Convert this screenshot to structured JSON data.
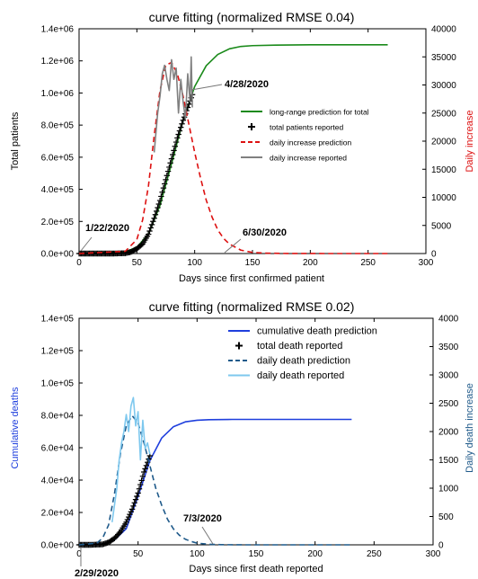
{
  "chart_data": [
    {
      "type": "line",
      "title": "curve fitting (normalized RMSE  0.04)",
      "xlabel": "Days since first confirmed patient",
      "ylabel_left": "Total patients",
      "ylabel_right": "Daily increase",
      "xlim": [
        0,
        300
      ],
      "ylim_left": [
        0,
        1400000
      ],
      "ylim_right": [
        0,
        40000
      ],
      "x_ticks": [
        "0",
        "50",
        "100",
        "150",
        "200",
        "250",
        "300"
      ],
      "y_left_ticks": [
        "0.0e+00",
        "2.0e+05",
        "4.0e+05",
        "6.0e+05",
        "8.0e+05",
        "1.0e+06",
        "1.2e+06",
        "1.4e+06"
      ],
      "y_right_ticks": [
        "0",
        "5000",
        "10000",
        "15000",
        "20000",
        "25000",
        "30000",
        "35000",
        "40000"
      ],
      "legend_position": "right",
      "colors": {
        "cumulative_prediction": "#1a8a1a",
        "cumulative_reported": "#000000",
        "daily_prediction": "#dd1111",
        "daily_reported": "#808080",
        "ylabel_right": "#dd1111",
        "ylabel_left": "#000000"
      },
      "series": [
        {
          "name": "long-range prediction for total",
          "axis": "left",
          "style": "solid",
          "x": [
            0,
            40,
            50,
            60,
            70,
            80,
            90,
            100,
            110,
            120,
            130,
            140,
            150,
            170,
            200,
            240,
            267
          ],
          "y": [
            0,
            10000,
            40000,
            120000,
            300000,
            560000,
            830000,
            1040000,
            1170000,
            1240000,
            1275000,
            1290000,
            1295000,
            1298000,
            1300000,
            1300000,
            1300000
          ]
        },
        {
          "name": "total patients reported",
          "axis": "left",
          "style": "marker",
          "x": [
            0,
            10,
            20,
            30,
            40,
            45,
            50,
            55,
            60,
            65,
            70,
            75,
            80,
            85,
            90,
            95,
            98
          ],
          "y": [
            0,
            0,
            0,
            0,
            2000,
            10000,
            30000,
            60000,
            120000,
            220000,
            330000,
            460000,
            590000,
            720000,
            830000,
            930000,
            990000
          ]
        },
        {
          "name": "daily increase prediction",
          "axis": "right",
          "style": "dashed",
          "x": [
            0,
            40,
            50,
            55,
            60,
            65,
            70,
            75,
            80,
            85,
            90,
            95,
            100,
            105,
            110,
            115,
            120,
            125,
            130,
            140,
            150,
            160,
            180,
            220,
            267
          ],
          "y": [
            0,
            400,
            2500,
            6000,
            12000,
            21000,
            29000,
            33500,
            34000,
            32000,
            28000,
            23000,
            18000,
            13500,
            9500,
            6500,
            4200,
            2700,
            1700,
            600,
            200,
            80,
            10,
            0,
            0
          ]
        },
        {
          "name": "daily increase reported",
          "axis": "right",
          "style": "solid",
          "x": [
            65,
            68,
            70,
            72,
            74,
            76,
            78,
            80,
            82,
            84,
            86,
            88,
            90,
            92,
            94,
            96,
            97,
            98
          ],
          "y": [
            18000,
            25000,
            28000,
            32000,
            33500,
            31000,
            29000,
            34500,
            31000,
            33000,
            25000,
            31000,
            27000,
            24000,
            32000,
            27000,
            35000,
            26000
          ]
        }
      ],
      "annotations": [
        {
          "text": "1/22/2020",
          "x": 0
        },
        {
          "text": "4/28/2020",
          "x": 98
        },
        {
          "text": "6/30/2020",
          "x": 160
        }
      ]
    },
    {
      "type": "line",
      "title": "curve fitting (normalized RMSE  0.02)",
      "xlabel": "Days since first death reported",
      "ylabel_left": "Cumulative deaths",
      "ylabel_right": "Daily death increase",
      "xlim": [
        0,
        300
      ],
      "ylim_left": [
        0,
        140000
      ],
      "ylim_right": [
        0,
        4000
      ],
      "x_ticks": [
        "0",
        "50",
        "100",
        "150",
        "200",
        "250",
        "300"
      ],
      "y_left_ticks": [
        "0.0e+00",
        "2.0e+04",
        "4.0e+04",
        "6.0e+04",
        "8.0e+04",
        "1.0e+05",
        "1.2e+05",
        "1.4e+05"
      ],
      "y_right_ticks": [
        "0",
        "500",
        "1000",
        "1500",
        "2000",
        "2500",
        "3000",
        "3500",
        "4000"
      ],
      "legend_position": "top-right",
      "colors": {
        "cumulative_prediction": "#1f3fdd",
        "cumulative_reported": "#000000",
        "daily_prediction": "#1f5a8a",
        "daily_reported": "#7ec8ee",
        "ylabel_right": "#1f5a8a",
        "ylabel_left": "#1f3fdd"
      },
      "series": [
        {
          "name": "cumulative death prediction",
          "axis": "left",
          "style": "solid",
          "x": [
            0,
            20,
            30,
            40,
            50,
            60,
            70,
            80,
            90,
            100,
            110,
            130,
            160,
            200,
            231
          ],
          "y": [
            0,
            500,
            3000,
            10000,
            30000,
            52000,
            66000,
            73000,
            76000,
            77000,
            77300,
            77500,
            77500,
            77500,
            77500
          ]
        },
        {
          "name": "total death reported",
          "axis": "left",
          "style": "marker",
          "x": [
            0,
            10,
            20,
            25,
            30,
            35,
            40,
            45,
            50,
            55,
            60
          ],
          "y": [
            0,
            0,
            300,
            1500,
            4000,
            8000,
            14000,
            22000,
            32000,
            45000,
            55000
          ]
        },
        {
          "name": "daily death prediction",
          "axis": "right",
          "style": "dashed",
          "x": [
            0,
            15,
            20,
            25,
            30,
            35,
            40,
            45,
            50,
            55,
            60,
            65,
            70,
            75,
            80,
            85,
            90,
            95,
            100,
            110,
            120,
            140,
            170,
            231
          ],
          "y": [
            0,
            30,
            120,
            350,
            900,
            1600,
            2100,
            2280,
            2150,
            1800,
            1400,
            1000,
            700,
            450,
            280,
            170,
            100,
            60,
            30,
            10,
            3,
            0,
            0,
            0
          ]
        },
        {
          "name": "daily death reported",
          "axis": "right",
          "style": "solid",
          "x": [
            28,
            30,
            32,
            34,
            36,
            38,
            40,
            42,
            44,
            46,
            48,
            50,
            52,
            54,
            56,
            58,
            60
          ],
          "y": [
            400,
            700,
            1000,
            1500,
            1800,
            2000,
            2300,
            2000,
            2450,
            2600,
            2100,
            2350,
            1500,
            2200,
            1700,
            1800,
            1600
          ]
        }
      ],
      "annotations": [
        {
          "text": "2/29/2020",
          "x": 0
        },
        {
          "text": "7/3/2020",
          "x": 100
        }
      ]
    }
  ]
}
